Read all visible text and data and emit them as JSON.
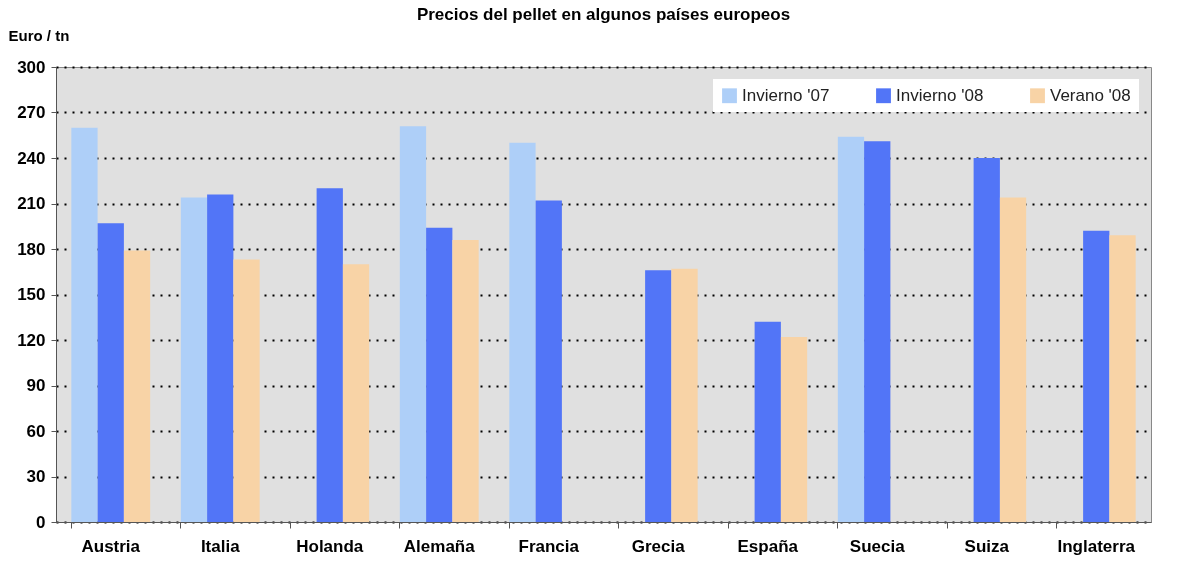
{
  "chart_data": {
    "type": "bar",
    "title": "Precios del pellet en algunos países europeos",
    "ylabel": "Euro / tn",
    "categories": [
      "Austria",
      "Italia",
      "Holanda",
      "Alemaña",
      "Francia",
      "Grecia",
      "España",
      "Suecia",
      "Suiza",
      "Inglaterra"
    ],
    "series": [
      {
        "name": "Invierno '07",
        "color": "#aecff8",
        "values": [
          260,
          214,
          null,
          261,
          250,
          null,
          null,
          254,
          null,
          null
        ]
      },
      {
        "name": "Invierno '08",
        "color": "#5275f7",
        "values": [
          197,
          216,
          220,
          194,
          212,
          166,
          132,
          251,
          240,
          192
        ]
      },
      {
        "name": "Verano '08",
        "color": "#f8d3a6",
        "values": [
          179,
          173,
          170,
          186,
          null,
          167,
          122,
          null,
          214,
          189
        ]
      }
    ],
    "ylim": [
      0,
      300
    ],
    "yticks": [
      0,
      30,
      60,
      90,
      120,
      150,
      180,
      210,
      240,
      270,
      300
    ],
    "grid": "y",
    "legend": "top right"
  }
}
